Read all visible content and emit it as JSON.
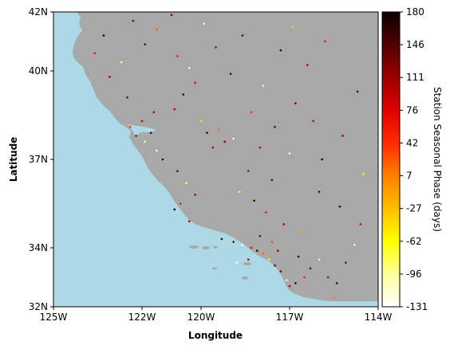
{
  "map": {
    "x_axis": {
      "label": "Longitude",
      "ticks": [
        {
          "value": -125,
          "label": "125W"
        },
        {
          "value": -122,
          "label": "122W"
        },
        {
          "value": -120,
          "label": "120W"
        },
        {
          "value": -117,
          "label": "117W"
        },
        {
          "value": -114,
          "label": "114W"
        }
      ]
    },
    "y_axis": {
      "label": "Latitude",
      "ticks": [
        {
          "value": 32,
          "label": "32N"
        },
        {
          "value": 34,
          "label": "34N"
        },
        {
          "value": 37,
          "label": "37N"
        },
        {
          "value": 40,
          "label": "40N"
        },
        {
          "value": 42,
          "label": "42N"
        }
      ]
    },
    "colors": {
      "ocean": "#add8e6",
      "land": "#a8a8a8",
      "axis": "#000000"
    }
  },
  "colorbar": {
    "label": "Station Seasonal Phase (days)",
    "colormap": "hot_r",
    "range": [
      -131,
      180
    ],
    "ticks": [
      "180",
      "146",
      "111",
      "76",
      "42",
      "7",
      "-27",
      "-62",
      "-96",
      "-131"
    ],
    "stops": [
      "#ffffff",
      "#ffff9a",
      "#ffff00",
      "#ffbf00",
      "#ff7f00",
      "#ff2b00",
      "#e00000",
      "#9a0000",
      "#520000",
      "#0b0000"
    ]
  },
  "chart_data": {
    "type": "scatter",
    "xlabel": "Longitude",
    "ylabel": "Latitude",
    "xlim": [
      -125,
      -114
    ],
    "ylim": [
      32,
      42
    ],
    "value_label": "Station Seasonal Phase (days)",
    "value_range": [
      -131,
      180
    ],
    "points": [
      {
        "x": -121.7,
        "y": 37.9,
        "v": 150
      },
      {
        "x": -121.9,
        "y": 37.6,
        "v": -100
      },
      {
        "x": -122.2,
        "y": 37.8,
        "v": 120
      },
      {
        "x": -122.0,
        "y": 38.3,
        "v": 90
      },
      {
        "x": -121.5,
        "y": 37.3,
        "v": -120
      },
      {
        "x": -121.3,
        "y": 37.0,
        "v": 160
      },
      {
        "x": -122.4,
        "y": 38.1,
        "v": 40
      },
      {
        "x": -121.6,
        "y": 38.6,
        "v": 100
      },
      {
        "x": -122.5,
        "y": 39.1,
        "v": 130
      },
      {
        "x": -123.1,
        "y": 39.8,
        "v": 110
      },
      {
        "x": -123.6,
        "y": 40.6,
        "v": 60
      },
      {
        "x": -123.3,
        "y": 41.2,
        "v": 170
      },
      {
        "x": -122.3,
        "y": 41.7,
        "v": 120
      },
      {
        "x": -122.7,
        "y": 40.3,
        "v": -90
      },
      {
        "x": -121.9,
        "y": 40.9,
        "v": 140
      },
      {
        "x": -121.5,
        "y": 41.4,
        "v": 20
      },
      {
        "x": -120.4,
        "y": 40.1,
        "v": -120
      },
      {
        "x": -120.2,
        "y": 39.6,
        "v": 80
      },
      {
        "x": -120.6,
        "y": 39.2,
        "v": 160
      },
      {
        "x": -120.9,
        "y": 38.7,
        "v": 100
      },
      {
        "x": -120.0,
        "y": 38.3,
        "v": -50
      },
      {
        "x": -119.8,
        "y": 37.9,
        "v": 150
      },
      {
        "x": -119.4,
        "y": 38.0,
        "v": 10
      },
      {
        "x": -119.2,
        "y": 37.6,
        "v": 120
      },
      {
        "x": -119.6,
        "y": 37.4,
        "v": 90
      },
      {
        "x": -118.9,
        "y": 37.7,
        "v": -110
      },
      {
        "x": -120.8,
        "y": 36.6,
        "v": 140
      },
      {
        "x": -120.5,
        "y": 36.2,
        "v": -80
      },
      {
        "x": -120.2,
        "y": 35.8,
        "v": 110
      },
      {
        "x": -120.7,
        "y": 35.5,
        "v": 60
      },
      {
        "x": -120.9,
        "y": 35.3,
        "v": 170
      },
      {
        "x": -120.4,
        "y": 34.9,
        "v": 100
      },
      {
        "x": -119.7,
        "y": 34.5,
        "v": -30
      },
      {
        "x": -119.3,
        "y": 34.3,
        "v": 150
      },
      {
        "x": -118.9,
        "y": 34.2,
        "v": 130
      },
      {
        "x": -118.6,
        "y": 34.1,
        "v": -120
      },
      {
        "x": -118.3,
        "y": 34.0,
        "v": 80
      },
      {
        "x": -118.1,
        "y": 33.9,
        "v": 160
      },
      {
        "x": -117.9,
        "y": 33.8,
        "v": 20
      },
      {
        "x": -118.4,
        "y": 33.6,
        "v": 110
      },
      {
        "x": -117.7,
        "y": 33.6,
        "v": -60
      },
      {
        "x": -117.5,
        "y": 33.4,
        "v": 140
      },
      {
        "x": -117.3,
        "y": 33.2,
        "v": 120
      },
      {
        "x": -117.1,
        "y": 32.9,
        "v": -100
      },
      {
        "x": -117.0,
        "y": 32.7,
        "v": 90
      },
      {
        "x": -116.8,
        "y": 32.8,
        "v": 170
      },
      {
        "x": -116.5,
        "y": 33.0,
        "v": 50
      },
      {
        "x": -116.3,
        "y": 33.3,
        "v": 130
      },
      {
        "x": -116.0,
        "y": 33.6,
        "v": -90
      },
      {
        "x": -115.7,
        "y": 33.0,
        "v": 100
      },
      {
        "x": -115.4,
        "y": 32.8,
        "v": 150
      },
      {
        "x": -115.5,
        "y": 32.3,
        "v": 10
      },
      {
        "x": -115.1,
        "y": 33.5,
        "v": 120
      },
      {
        "x": -114.8,
        "y": 34.1,
        "v": -110
      },
      {
        "x": -114.6,
        "y": 34.8,
        "v": 80
      },
      {
        "x": -115.3,
        "y": 35.4,
        "v": 160
      },
      {
        "x": -116.0,
        "y": 35.9,
        "v": 140
      },
      {
        "x": -116.6,
        "y": 34.6,
        "v": -20
      },
      {
        "x": -117.2,
        "y": 34.8,
        "v": 110
      },
      {
        "x": -117.8,
        "y": 35.2,
        "v": 60
      },
      {
        "x": -118.2,
        "y": 35.6,
        "v": 170
      },
      {
        "x": -118.7,
        "y": 35.9,
        "v": -70
      },
      {
        "x": -118.4,
        "y": 36.6,
        "v": 100
      },
      {
        "x": -117.6,
        "y": 36.3,
        "v": 130
      },
      {
        "x": -117.0,
        "y": 37.2,
        "v": -120
      },
      {
        "x": -118.0,
        "y": 37.4,
        "v": 90
      },
      {
        "x": -117.5,
        "y": 38.1,
        "v": 150
      },
      {
        "x": -118.3,
        "y": 38.6,
        "v": 40
      },
      {
        "x": -116.8,
        "y": 38.9,
        "v": 120
      },
      {
        "x": -117.9,
        "y": 39.5,
        "v": -90
      },
      {
        "x": -116.4,
        "y": 40.2,
        "v": 110
      },
      {
        "x": -117.3,
        "y": 40.7,
        "v": 160
      },
      {
        "x": -115.8,
        "y": 41.0,
        "v": 70
      },
      {
        "x": -116.9,
        "y": 41.5,
        "v": -40
      },
      {
        "x": -118.6,
        "y": 41.2,
        "v": 130
      },
      {
        "x": -119.5,
        "y": 40.8,
        "v": 100
      },
      {
        "x": -119.0,
        "y": 39.9,
        "v": 150
      },
      {
        "x": -119.9,
        "y": 41.6,
        "v": -100
      },
      {
        "x": -121.0,
        "y": 41.9,
        "v": 120
      },
      {
        "x": -120.8,
        "y": 40.5,
        "v": 60
      },
      {
        "x": -114.7,
        "y": 39.3,
        "v": 140
      },
      {
        "x": -115.2,
        "y": 37.8,
        "v": 110
      },
      {
        "x": -114.5,
        "y": 36.5,
        "v": -60
      },
      {
        "x": -115.9,
        "y": 37.0,
        "v": 170
      },
      {
        "x": -116.2,
        "y": 38.3,
        "v": 90
      },
      {
        "x": -118.8,
        "y": 33.5,
        "v": -130
      },
      {
        "x": -117.4,
        "y": 33.9,
        "v": 100
      },
      {
        "x": -116.7,
        "y": 33.7,
        "v": 150
      },
      {
        "x": -118.0,
        "y": 34.4,
        "v": 120
      },
      {
        "x": -117.6,
        "y": 34.2,
        "v": 30
      }
    ]
  }
}
